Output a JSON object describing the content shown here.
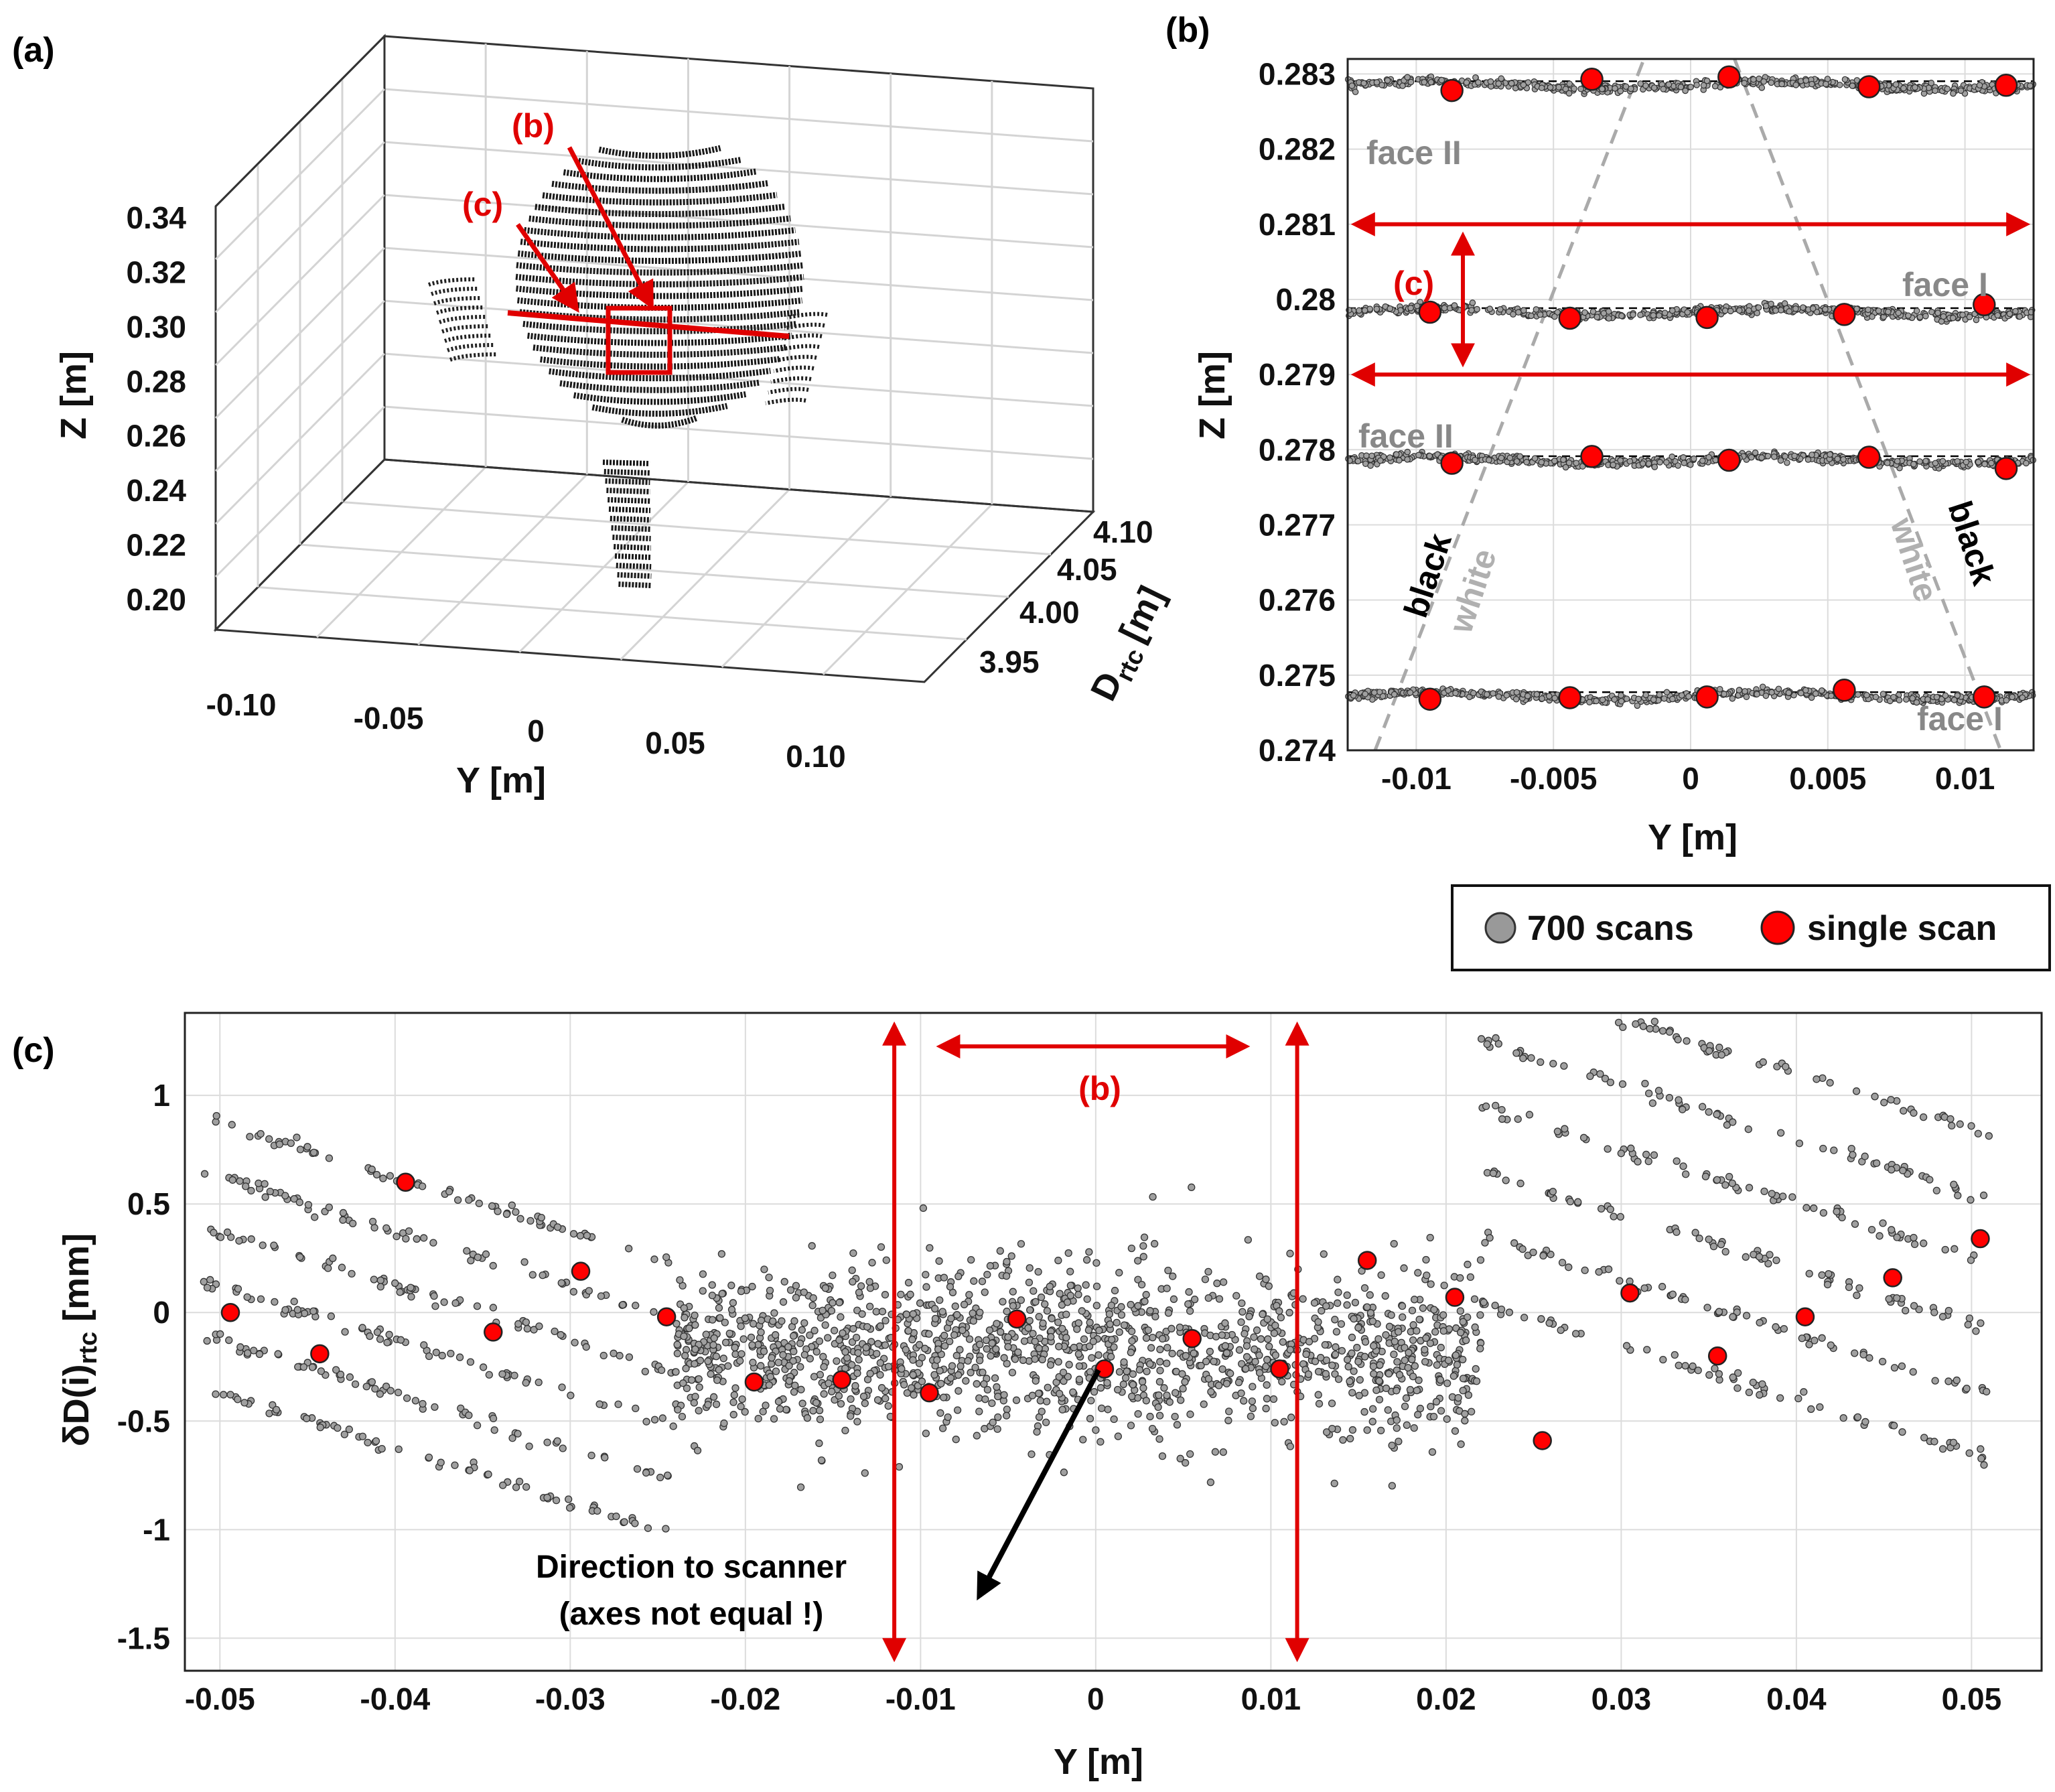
{
  "panels": {
    "a": "(a)",
    "b": "(b)",
    "c": "(c)"
  },
  "legend": {
    "multi": "700 scans",
    "single": "single scan",
    "multi_color": "#999999",
    "single_color": "#ff0000"
  },
  "chart_data": [
    {
      "id": "a",
      "type": "scatter",
      "title": "",
      "xlabel": "Y [m]",
      "ylabel": "Z [m]",
      "zlabel": "D",
      "zlabel_sub": "rtc",
      "zlabel_unit": "[m]",
      "x_ticks": [
        "-0.10",
        "-0.05",
        "0",
        "0.05",
        "0.10"
      ],
      "y_ticks": [
        "0.20",
        "0.22",
        "0.24",
        "0.26",
        "0.28",
        "0.30",
        "0.32",
        "0.34"
      ],
      "z_ticks": [
        "3.95",
        "4.00",
        "4.05",
        "4.10"
      ],
      "xlim": [
        -0.12,
        0.12
      ],
      "ylim": [
        0.19,
        0.35
      ],
      "zlim": [
        3.92,
        4.12
      ],
      "annotations": [
        "(b)",
        "(c)"
      ],
      "description_rows": 26
    },
    {
      "id": "b",
      "type": "scatter",
      "xlabel": "Y  [m]",
      "ylabel": "Z [m]",
      "xlim": [
        -0.0125,
        0.0125
      ],
      "ylim": [
        0.274,
        0.2832
      ],
      "x_ticks": [
        -0.01,
        -0.005,
        0,
        0.005,
        0.01
      ],
      "x_tick_labels": [
        "-0.01",
        "-0.005",
        "0",
        "0.005",
        "0.01"
      ],
      "y_ticks": [
        0.274,
        0.275,
        0.276,
        0.277,
        0.278,
        0.279,
        0.28,
        0.281,
        0.282,
        0.283
      ],
      "y_tick_labels": [
        "0.274",
        "0.275",
        "0.276",
        "0.277",
        "0.278",
        "0.279",
        "0.28",
        "0.281",
        "0.282",
        "0.283"
      ],
      "grid": true,
      "rows": [
        {
          "z": 0.28285,
          "single": [
            [
              -0.0087,
              0.28278
            ],
            [
              -0.0036,
              0.28293
            ],
            [
              0.0014,
              0.28296
            ],
            [
              0.0065,
              0.28283
            ],
            [
              0.0115,
              0.28285
            ]
          ]
        },
        {
          "z": 0.27983,
          "single": [
            [
              -0.0095,
              0.27983
            ],
            [
              -0.0044,
              0.27975
            ],
            [
              0.0006,
              0.27976
            ],
            [
              0.0056,
              0.2798
            ],
            [
              0.0107,
              0.27993
            ]
          ]
        },
        {
          "z": 0.27786,
          "single": [
            [
              -0.0087,
              0.27782
            ],
            [
              -0.0036,
              0.27791
            ],
            [
              0.0014,
              0.27786
            ],
            [
              0.0065,
              0.2779
            ],
            [
              0.0115,
              0.27775
            ]
          ]
        },
        {
          "z": 0.27472,
          "single": [
            [
              -0.0095,
              0.27468
            ],
            [
              -0.0044,
              0.2747
            ],
            [
              0.0006,
              0.27471
            ],
            [
              0.0056,
              0.2748
            ],
            [
              0.0107,
              0.27471
            ]
          ]
        }
      ],
      "arrows_z": [
        0.281,
        0.279
      ],
      "arrows_y": [
        -0.0125,
        0.0115
      ],
      "labels": {
        "face_II_top": "face II",
        "face_I_mid": "face I",
        "face_II_mid": "face II",
        "face_I_bot": "face I",
        "c": "(c)",
        "black": "black",
        "white": "white"
      }
    },
    {
      "id": "c",
      "type": "scatter",
      "xlabel": "Y [m]",
      "ylabel": "δD(i)",
      "ylabel_sub": "rtc",
      "ylabel_unit": " [mm]",
      "xlim": [
        -0.052,
        0.054
      ],
      "ylim": [
        -1.65,
        1.38
      ],
      "x_ticks": [
        -0.05,
        -0.04,
        -0.03,
        -0.02,
        -0.01,
        0,
        0.01,
        0.02,
        0.03,
        0.04,
        0.05
      ],
      "x_tick_labels": [
        "-0.05",
        "-0.04",
        "-0.03",
        "-0.02",
        "-0.01",
        "0",
        "0.01",
        "0.02",
        "0.03",
        "0.04",
        "0.05"
      ],
      "y_ticks": [
        -1.5,
        -1,
        -0.5,
        0,
        0.5,
        1
      ],
      "y_tick_labels": [
        "-1.5",
        "-1",
        "-0.5",
        "0",
        "0.5",
        "1"
      ],
      "grid": true,
      "single_scan": [
        [
          -0.0494,
          0.0
        ],
        [
          -0.0443,
          -0.19
        ],
        [
          -0.0394,
          0.6
        ],
        [
          -0.0344,
          -0.09
        ],
        [
          -0.0294,
          0.19
        ],
        [
          -0.0245,
          -0.02
        ],
        [
          -0.0195,
          -0.32
        ],
        [
          -0.0145,
          -0.31
        ],
        [
          -0.0095,
          -0.37
        ],
        [
          -0.0045,
          -0.03
        ],
        [
          0.0005,
          -0.26
        ],
        [
          0.0055,
          -0.12
        ],
        [
          0.0105,
          -0.26
        ],
        [
          0.0155,
          0.24
        ],
        [
          0.0205,
          0.07
        ],
        [
          0.0255,
          -0.59
        ],
        [
          0.0305,
          0.09
        ],
        [
          0.0355,
          -0.2
        ],
        [
          0.0405,
          -0.02
        ],
        [
          0.0455,
          0.16
        ],
        [
          0.0505,
          0.34
        ]
      ],
      "markers_y": [
        -0.0115,
        0.0115
      ],
      "span_b": [
        -0.0093,
        0.009
      ],
      "annotations": {
        "b": "(b)",
        "note1": "Direction to scanner",
        "note2": "(axes not equal !)"
      }
    }
  ]
}
